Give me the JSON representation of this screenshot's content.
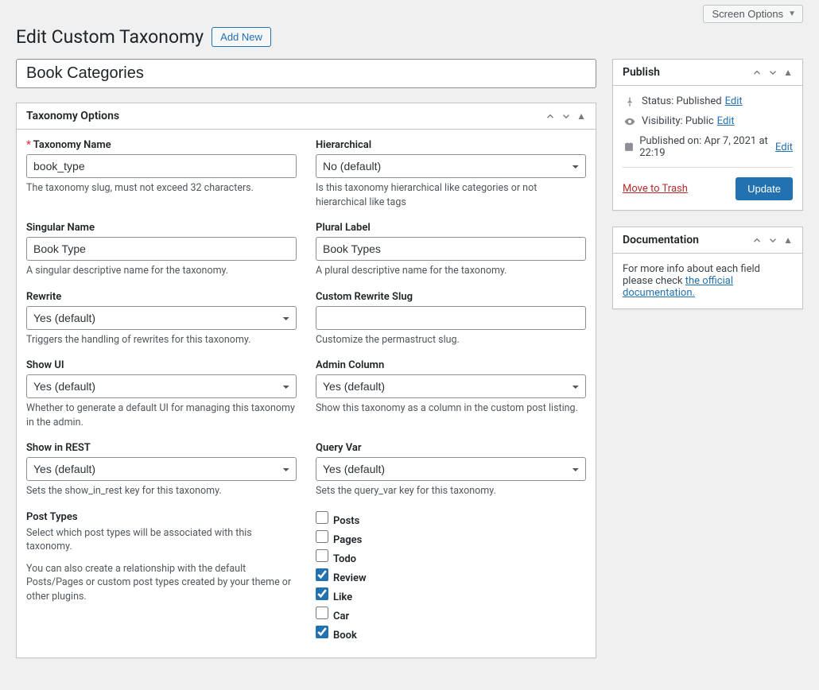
{
  "screen_options_label": "Screen Options",
  "page_title": "Edit Custom Taxonomy",
  "add_new_label": "Add New",
  "taxonomy_title_value": "Book Categories",
  "panel_options_title": "Taxonomy Options",
  "fields": {
    "taxonomy_name": {
      "label": "Taxonomy Name",
      "value": "book_type",
      "desc": "The taxonomy slug, must not exceed 32 characters."
    },
    "hierarchical": {
      "label": "Hierarchical",
      "value": "No (default)",
      "desc": "Is this taxonomy hierarchical like categories or not hierarchical like tags"
    },
    "singular_name": {
      "label": "Singular Name",
      "value": "Book Type",
      "desc": "A singular descriptive name for the taxonomy."
    },
    "plural_label": {
      "label": "Plural Label",
      "value": "Book Types",
      "desc": "A plural descriptive name for the taxonomy."
    },
    "rewrite": {
      "label": "Rewrite",
      "value": "Yes (default)",
      "desc": "Triggers the handling of rewrites for this taxonomy."
    },
    "custom_rewrite_slug": {
      "label": "Custom Rewrite Slug",
      "value": "",
      "desc": "Customize the permastruct slug."
    },
    "show_ui": {
      "label": "Show UI",
      "value": "Yes (default)",
      "desc": "Whether to generate a default UI for managing this taxonomy in the admin."
    },
    "admin_column": {
      "label": "Admin Column",
      "value": "Yes (default)",
      "desc": "Show this taxonomy as a column in the custom post listing."
    },
    "show_in_rest": {
      "label": "Show in REST",
      "value": "Yes (default)",
      "desc": "Sets the show_in_rest key for this taxonomy."
    },
    "query_var": {
      "label": "Query Var",
      "value": "Yes (default)",
      "desc": "Sets the query_var key for this taxonomy."
    },
    "post_types": {
      "label": "Post Types",
      "desc1": "Select which post types will be associated with this taxonomy.",
      "desc2": "You can also create a relationship with the default Posts/Pages or custom post types created by your theme or other plugins.",
      "options": [
        {
          "label": "Posts",
          "checked": false
        },
        {
          "label": "Pages",
          "checked": false
        },
        {
          "label": "Todo",
          "checked": false
        },
        {
          "label": "Review",
          "checked": true
        },
        {
          "label": "Like",
          "checked": true
        },
        {
          "label": "Car",
          "checked": false
        },
        {
          "label": "Book",
          "checked": true
        }
      ]
    }
  },
  "publish": {
    "title": "Publish",
    "status_prefix": "Status: ",
    "status_value": "Published",
    "visibility_prefix": "Visibility: ",
    "visibility_value": "Public",
    "date_prefix": "Published on: ",
    "date_value": "Apr 7, 2021 at 22:19",
    "edit_label": "Edit",
    "trash_label": "Move to Trash",
    "update_label": "Update"
  },
  "documentation": {
    "title": "Documentation",
    "text_before": "For more info about each field please check ",
    "link_text": "the official documentation."
  }
}
